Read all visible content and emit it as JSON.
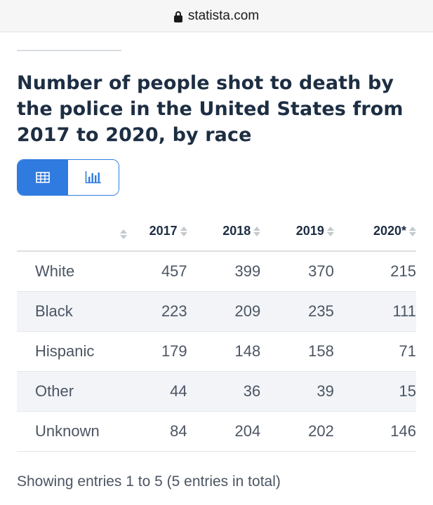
{
  "browser": {
    "url": "statista.com"
  },
  "title": "Number of people shot to death by the police in the United States from 2017 to 2020, by race",
  "view_toggle": {
    "active": "table"
  },
  "table": {
    "headers": [
      "",
      "2017",
      "2018",
      "2019",
      "2020*"
    ],
    "rows": [
      {
        "label": "White",
        "values": [
          "457",
          "399",
          "370",
          "215"
        ]
      },
      {
        "label": "Black",
        "values": [
          "223",
          "209",
          "235",
          "111"
        ]
      },
      {
        "label": "Hispanic",
        "values": [
          "179",
          "148",
          "158",
          "71"
        ]
      },
      {
        "label": "Other",
        "values": [
          "44",
          "36",
          "39",
          "15"
        ]
      },
      {
        "label": "Unknown",
        "values": [
          "84",
          "204",
          "202",
          "146"
        ]
      }
    ]
  },
  "footer": "Showing entries 1 to 5 (5 entries in total)",
  "colors": {
    "accent": "#2f7be0",
    "title": "#1d2e43",
    "text": "#4b5563",
    "stripe": "#f2f4f8"
  }
}
